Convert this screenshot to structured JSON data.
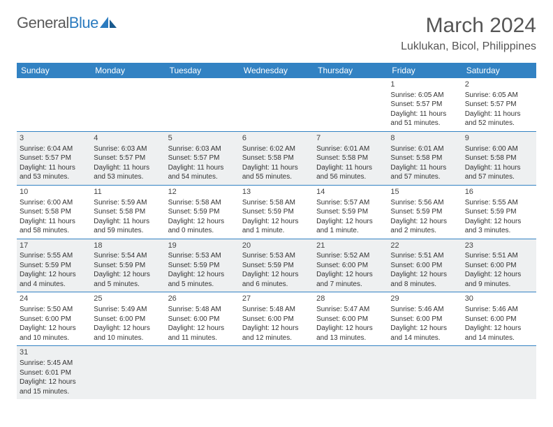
{
  "brand": {
    "part1": "General",
    "part2": "Blue"
  },
  "title": {
    "month": "March 2024",
    "location": "Luklukan, Bicol, Philippines"
  },
  "colors": {
    "header_bg": "#3282c3",
    "header_text": "#ffffff",
    "row_border": "#3282c3",
    "alt_row_bg": "#eef0f1",
    "text": "#333333",
    "brand_gray": "#5a5a5a",
    "brand_blue": "#2b7bbf"
  },
  "weekdays": [
    "Sunday",
    "Monday",
    "Tuesday",
    "Wednesday",
    "Thursday",
    "Friday",
    "Saturday"
  ],
  "weeks": [
    [
      null,
      null,
      null,
      null,
      null,
      {
        "n": "1",
        "l1": "Sunrise: 6:05 AM",
        "l2": "Sunset: 5:57 PM",
        "l3": "Daylight: 11 hours",
        "l4": "and 51 minutes."
      },
      {
        "n": "2",
        "l1": "Sunrise: 6:05 AM",
        "l2": "Sunset: 5:57 PM",
        "l3": "Daylight: 11 hours",
        "l4": "and 52 minutes."
      }
    ],
    [
      {
        "n": "3",
        "l1": "Sunrise: 6:04 AM",
        "l2": "Sunset: 5:57 PM",
        "l3": "Daylight: 11 hours",
        "l4": "and 53 minutes."
      },
      {
        "n": "4",
        "l1": "Sunrise: 6:03 AM",
        "l2": "Sunset: 5:57 PM",
        "l3": "Daylight: 11 hours",
        "l4": "and 53 minutes."
      },
      {
        "n": "5",
        "l1": "Sunrise: 6:03 AM",
        "l2": "Sunset: 5:57 PM",
        "l3": "Daylight: 11 hours",
        "l4": "and 54 minutes."
      },
      {
        "n": "6",
        "l1": "Sunrise: 6:02 AM",
        "l2": "Sunset: 5:58 PM",
        "l3": "Daylight: 11 hours",
        "l4": "and 55 minutes."
      },
      {
        "n": "7",
        "l1": "Sunrise: 6:01 AM",
        "l2": "Sunset: 5:58 PM",
        "l3": "Daylight: 11 hours",
        "l4": "and 56 minutes."
      },
      {
        "n": "8",
        "l1": "Sunrise: 6:01 AM",
        "l2": "Sunset: 5:58 PM",
        "l3": "Daylight: 11 hours",
        "l4": "and 57 minutes."
      },
      {
        "n": "9",
        "l1": "Sunrise: 6:00 AM",
        "l2": "Sunset: 5:58 PM",
        "l3": "Daylight: 11 hours",
        "l4": "and 57 minutes."
      }
    ],
    [
      {
        "n": "10",
        "l1": "Sunrise: 6:00 AM",
        "l2": "Sunset: 5:58 PM",
        "l3": "Daylight: 11 hours",
        "l4": "and 58 minutes."
      },
      {
        "n": "11",
        "l1": "Sunrise: 5:59 AM",
        "l2": "Sunset: 5:58 PM",
        "l3": "Daylight: 11 hours",
        "l4": "and 59 minutes."
      },
      {
        "n": "12",
        "l1": "Sunrise: 5:58 AM",
        "l2": "Sunset: 5:59 PM",
        "l3": "Daylight: 12 hours",
        "l4": "and 0 minutes."
      },
      {
        "n": "13",
        "l1": "Sunrise: 5:58 AM",
        "l2": "Sunset: 5:59 PM",
        "l3": "Daylight: 12 hours",
        "l4": "and 1 minute."
      },
      {
        "n": "14",
        "l1": "Sunrise: 5:57 AM",
        "l2": "Sunset: 5:59 PM",
        "l3": "Daylight: 12 hours",
        "l4": "and 1 minute."
      },
      {
        "n": "15",
        "l1": "Sunrise: 5:56 AM",
        "l2": "Sunset: 5:59 PM",
        "l3": "Daylight: 12 hours",
        "l4": "and 2 minutes."
      },
      {
        "n": "16",
        "l1": "Sunrise: 5:55 AM",
        "l2": "Sunset: 5:59 PM",
        "l3": "Daylight: 12 hours",
        "l4": "and 3 minutes."
      }
    ],
    [
      {
        "n": "17",
        "l1": "Sunrise: 5:55 AM",
        "l2": "Sunset: 5:59 PM",
        "l3": "Daylight: 12 hours",
        "l4": "and 4 minutes."
      },
      {
        "n": "18",
        "l1": "Sunrise: 5:54 AM",
        "l2": "Sunset: 5:59 PM",
        "l3": "Daylight: 12 hours",
        "l4": "and 5 minutes."
      },
      {
        "n": "19",
        "l1": "Sunrise: 5:53 AM",
        "l2": "Sunset: 5:59 PM",
        "l3": "Daylight: 12 hours",
        "l4": "and 5 minutes."
      },
      {
        "n": "20",
        "l1": "Sunrise: 5:53 AM",
        "l2": "Sunset: 5:59 PM",
        "l3": "Daylight: 12 hours",
        "l4": "and 6 minutes."
      },
      {
        "n": "21",
        "l1": "Sunrise: 5:52 AM",
        "l2": "Sunset: 6:00 PM",
        "l3": "Daylight: 12 hours",
        "l4": "and 7 minutes."
      },
      {
        "n": "22",
        "l1": "Sunrise: 5:51 AM",
        "l2": "Sunset: 6:00 PM",
        "l3": "Daylight: 12 hours",
        "l4": "and 8 minutes."
      },
      {
        "n": "23",
        "l1": "Sunrise: 5:51 AM",
        "l2": "Sunset: 6:00 PM",
        "l3": "Daylight: 12 hours",
        "l4": "and 9 minutes."
      }
    ],
    [
      {
        "n": "24",
        "l1": "Sunrise: 5:50 AM",
        "l2": "Sunset: 6:00 PM",
        "l3": "Daylight: 12 hours",
        "l4": "and 10 minutes."
      },
      {
        "n": "25",
        "l1": "Sunrise: 5:49 AM",
        "l2": "Sunset: 6:00 PM",
        "l3": "Daylight: 12 hours",
        "l4": "and 10 minutes."
      },
      {
        "n": "26",
        "l1": "Sunrise: 5:48 AM",
        "l2": "Sunset: 6:00 PM",
        "l3": "Daylight: 12 hours",
        "l4": "and 11 minutes."
      },
      {
        "n": "27",
        "l1": "Sunrise: 5:48 AM",
        "l2": "Sunset: 6:00 PM",
        "l3": "Daylight: 12 hours",
        "l4": "and 12 minutes."
      },
      {
        "n": "28",
        "l1": "Sunrise: 5:47 AM",
        "l2": "Sunset: 6:00 PM",
        "l3": "Daylight: 12 hours",
        "l4": "and 13 minutes."
      },
      {
        "n": "29",
        "l1": "Sunrise: 5:46 AM",
        "l2": "Sunset: 6:00 PM",
        "l3": "Daylight: 12 hours",
        "l4": "and 14 minutes."
      },
      {
        "n": "30",
        "l1": "Sunrise: 5:46 AM",
        "l2": "Sunset: 6:00 PM",
        "l3": "Daylight: 12 hours",
        "l4": "and 14 minutes."
      }
    ],
    [
      {
        "n": "31",
        "l1": "Sunrise: 5:45 AM",
        "l2": "Sunset: 6:01 PM",
        "l3": "Daylight: 12 hours",
        "l4": "and 15 minutes."
      },
      null,
      null,
      null,
      null,
      null,
      null
    ]
  ]
}
